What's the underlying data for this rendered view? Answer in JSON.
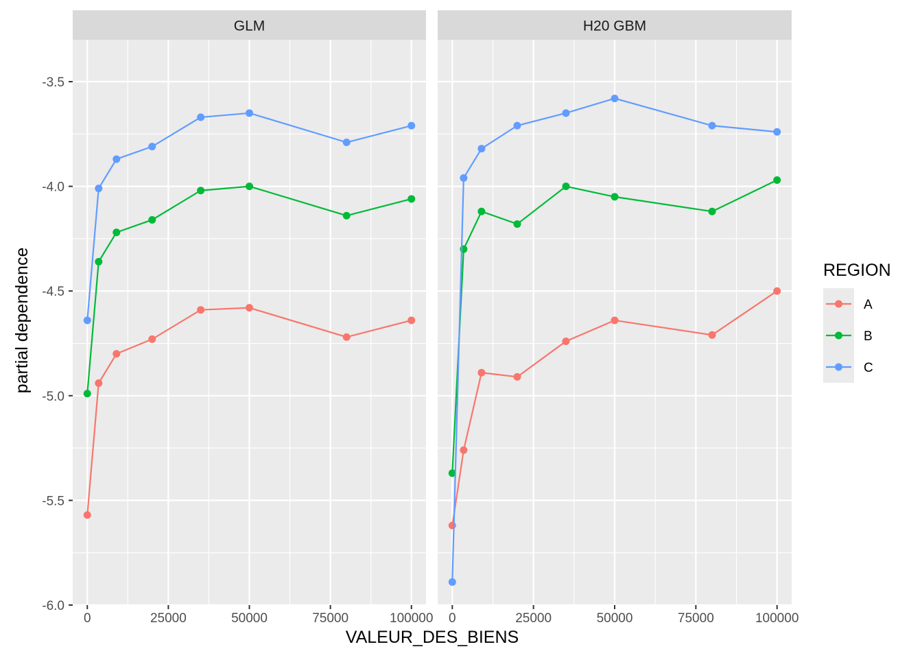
{
  "chart_data": {
    "type": "line",
    "xlabel": "VALEUR_DES_BIENS",
    "ylabel": "partial dependence",
    "xlim": [
      -4500,
      104500
    ],
    "ylim": [
      -6.0,
      -3.3
    ],
    "x_ticks": [
      0,
      25000,
      50000,
      75000,
      100000
    ],
    "x_tick_labels": [
      "0",
      "25000",
      "50000",
      "75000",
      "100000"
    ],
    "y_ticks": [
      -6.0,
      -5.5,
      -5.0,
      -4.5,
      -4.0,
      -3.5
    ],
    "y_tick_labels": [
      "-6.0",
      "-5.5",
      "-5.0",
      "-4.5",
      "-4.0",
      "-3.5"
    ],
    "grid": true,
    "legend": {
      "title": "REGION",
      "position": "right",
      "entries": [
        "A",
        "B",
        "C"
      ]
    },
    "colors": {
      "A": "#F8766D",
      "B": "#00BA38",
      "C": "#619CFF"
    },
    "x": [
      0,
      3500,
      9000,
      20000,
      35000,
      50000,
      80000,
      100000
    ],
    "panels": [
      {
        "title": "GLM",
        "series": [
          {
            "name": "A",
            "values": [
              -5.57,
              -4.94,
              -4.8,
              -4.73,
              -4.59,
              -4.58,
              -4.72,
              -4.64
            ]
          },
          {
            "name": "B",
            "values": [
              -4.99,
              -4.36,
              -4.22,
              -4.16,
              -4.02,
              -4.0,
              -4.14,
              -4.06
            ]
          },
          {
            "name": "C",
            "values": [
              -4.64,
              -4.01,
              -3.87,
              -3.81,
              -3.67,
              -3.65,
              -3.79,
              -3.71
            ]
          }
        ]
      },
      {
        "title": "H20 GBM",
        "series": [
          {
            "name": "A",
            "values": [
              -5.62,
              -5.26,
              -4.89,
              -4.91,
              -4.74,
              -4.64,
              -4.71,
              -4.5
            ]
          },
          {
            "name": "B",
            "values": [
              -5.37,
              -4.3,
              -4.12,
              -4.18,
              -4.0,
              -4.05,
              -4.12,
              -3.97
            ]
          },
          {
            "name": "C",
            "values": [
              -5.89,
              -3.96,
              -3.82,
              -3.71,
              -3.65,
              -3.58,
              -3.71,
              -3.74
            ]
          }
        ]
      }
    ]
  }
}
